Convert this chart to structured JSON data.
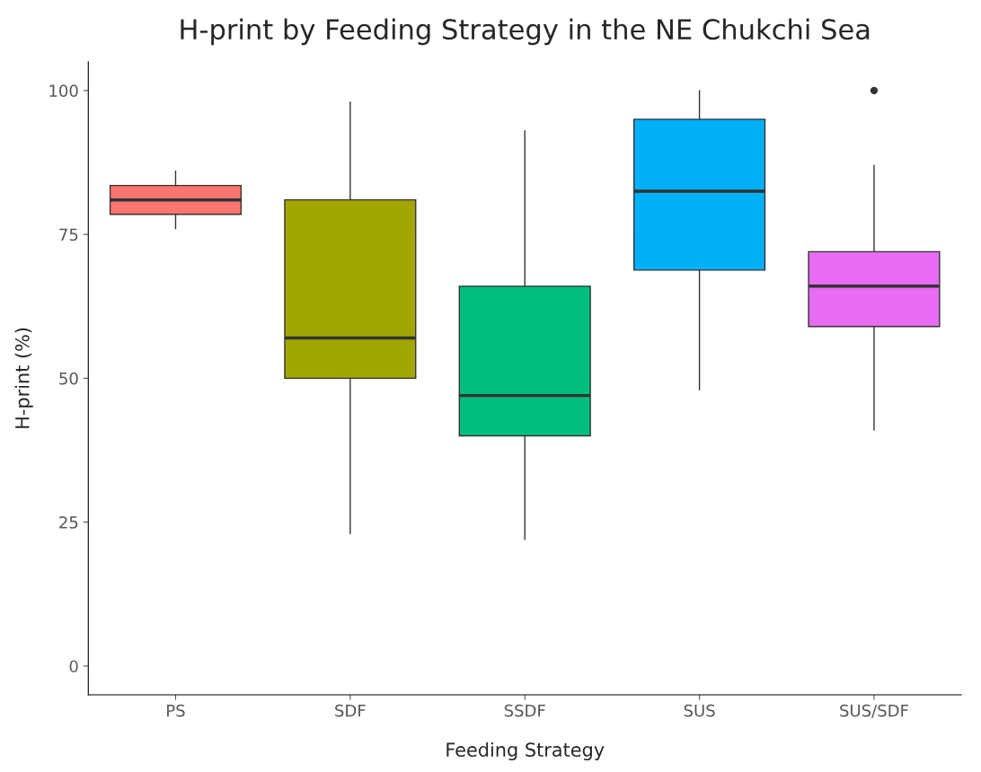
{
  "chart_data": {
    "type": "box",
    "title": "H-print by Feeding Strategy in the NE Chukchi Sea",
    "xlabel": "Feeding Strategy",
    "ylabel": "H-print (%)",
    "categories": [
      "PS",
      "SDF",
      "SSDF",
      "SUS",
      "SUS/SDF"
    ],
    "colors": [
      "#f8766d",
      "#a3a500",
      "#00bf7d",
      "#00b0f6",
      "#e76bf3"
    ],
    "boxes": [
      {
        "low": 76,
        "q1": 78.5,
        "median": 81,
        "q3": 83.5,
        "high": 86
      },
      {
        "low": 23,
        "q1": 50,
        "median": 57,
        "q3": 81,
        "high": 98
      },
      {
        "low": 22,
        "q1": 40,
        "median": 47,
        "q3": 66,
        "high": 93
      },
      {
        "low": 48,
        "q1": 68.8,
        "median": 82.5,
        "q3": 95,
        "high": 100
      },
      {
        "low": 41,
        "q1": 59,
        "median": 66,
        "q3": 72,
        "high": 87,
        "outliers": [
          100
        ]
      }
    ],
    "ylim": [
      -5,
      105
    ],
    "yticks": [
      0,
      25,
      50,
      75,
      100
    ],
    "grid": false,
    "legend": false
  }
}
